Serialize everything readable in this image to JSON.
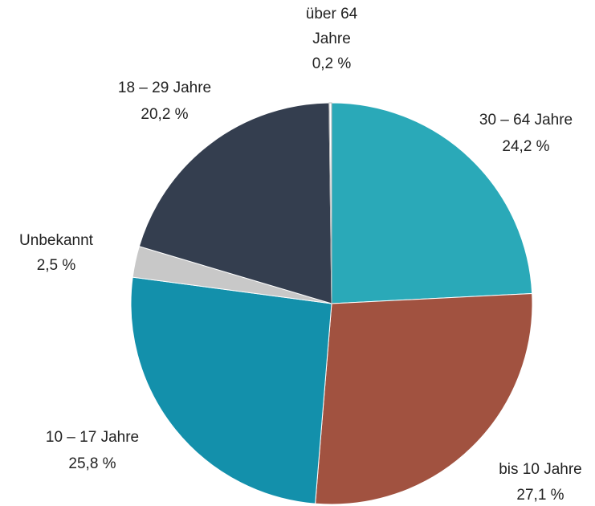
{
  "chart_data": {
    "type": "pie",
    "categories": [
      "30 – 64 Jahre",
      "bis 10 Jahre",
      "10 – 17 Jahre",
      "Unbekannt",
      "18 – 29 Jahre",
      "über 64 Jahre"
    ],
    "values": [
      24.2,
      27.1,
      25.8,
      2.5,
      20.2,
      0.2
    ],
    "value_labels": [
      "24,2 %",
      "27,1 %",
      "25,8 %",
      "2,5 %",
      "20,2 %",
      "0,2 %"
    ],
    "colors": [
      "#2aa9b8",
      "#a15240",
      "#1390ab",
      "#c8c8c8",
      "#343e4f",
      "#ffffff"
    ]
  }
}
